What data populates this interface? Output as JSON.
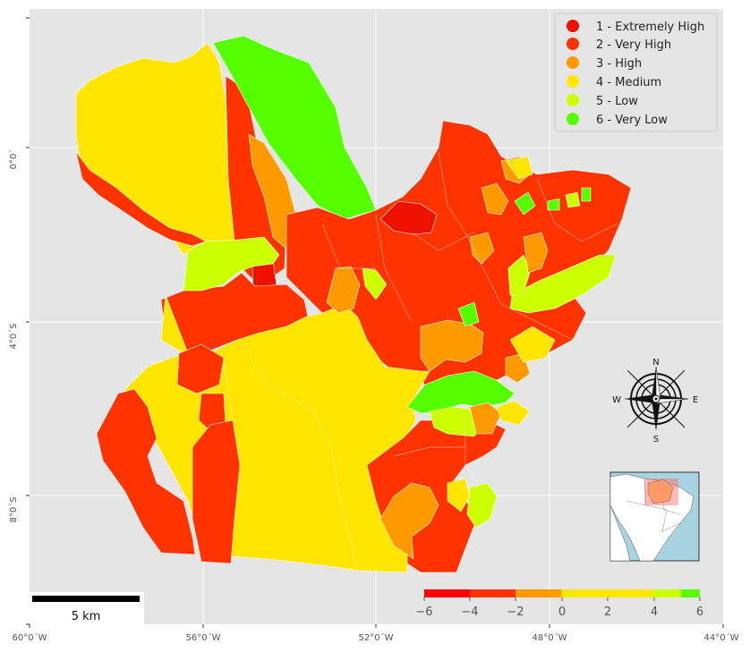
{
  "map": {
    "axes": {
      "x_ticks": [
        "60°0´W",
        "56°0´W",
        "52°0´W",
        "48°0´W",
        "44°0´W"
      ],
      "y_ticks": [
        "0°0´",
        "4°0´S",
        "8°0´S"
      ]
    },
    "legend": [
      {
        "label": "1 - Extremely High",
        "color": "#ee1100"
      },
      {
        "label": "2 - Very High",
        "color": "#ff3300"
      },
      {
        "label": "3 - High",
        "color": "#ff9900"
      },
      {
        "label": "4 - Medium",
        "color": "#ffe600"
      },
      {
        "label": "5 - Low",
        "color": "#ccff00"
      },
      {
        "label": "6 - Very Low",
        "color": "#55ff00"
      }
    ],
    "colorbar": {
      "ticks": [
        "−6",
        "−4",
        "−2",
        "0",
        "2",
        "4",
        "6"
      ],
      "colors": [
        "#ff0000",
        "#ff3300",
        "#ff6600",
        "#ff9900",
        "#ffe600",
        "#ccff00",
        "#55ff00"
      ]
    },
    "scale_bar": {
      "label": "5 km"
    },
    "compass": {
      "n": "N",
      "s": "S",
      "e": "E",
      "w": "W"
    },
    "colors": {
      "panel_bg": "#e5e5e5",
      "grid": "#ffffff",
      "extremely_high": "#ee1100",
      "very_high": "#ff3300",
      "high": "#ff9900",
      "medium": "#ffe600",
      "low": "#ccff00",
      "very_low": "#55ff00",
      "ocean_inset": "#a8d3e0"
    }
  }
}
